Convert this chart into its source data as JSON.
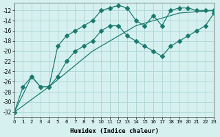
{
  "xlabel": "Humidex (Indice chaleur)",
  "ylabel": "",
  "bg_color": "#d6f0f0",
  "grid_color": "#b0d8d8",
  "line_color": "#1a7a6e",
  "xlim": [
    0,
    23
  ],
  "ylim": [
    -33,
    -10.5
  ],
  "yticks": [
    -32,
    -30,
    -28,
    -26,
    -24,
    -22,
    -20,
    -18,
    -16,
    -14,
    -12
  ],
  "xticks": [
    0,
    1,
    2,
    3,
    4,
    5,
    6,
    7,
    8,
    9,
    10,
    11,
    12,
    13,
    14,
    15,
    16,
    17,
    18,
    19,
    20,
    21,
    22,
    23
  ],
  "line1_x": [
    0,
    1,
    2,
    3,
    4,
    5,
    6,
    7,
    8,
    9,
    10,
    11,
    12,
    13,
    14,
    15,
    16,
    17,
    18,
    19,
    20,
    21,
    22,
    23
  ],
  "line1_y": [
    -32,
    -27,
    -25,
    -27,
    -27,
    -19,
    -17,
    -16,
    -15,
    -14,
    -12,
    -11.5,
    -11,
    -11.5,
    -14,
    -15,
    -13,
    -15,
    -12,
    -11.5,
    -11.5,
    -12,
    -12,
    -12
  ],
  "line2_x": [
    0,
    2,
    3,
    4,
    5,
    6,
    7,
    8,
    9,
    10,
    11,
    12,
    13,
    14,
    15,
    16,
    17,
    18,
    19,
    20,
    21,
    22,
    23
  ],
  "line2_y": [
    -32,
    -25,
    -27,
    -27,
    -25,
    -22,
    -20,
    -19,
    -18,
    -16,
    -15,
    -15,
    -17,
    -18,
    -19,
    -20,
    -21,
    -19,
    -18,
    -17,
    -16,
    -15,
    -12.5
  ],
  "line3_x": [
    0,
    4,
    9,
    14,
    19,
    23
  ],
  "line3_y": [
    -32,
    -27,
    -20,
    -15,
    -12.5,
    -12
  ]
}
